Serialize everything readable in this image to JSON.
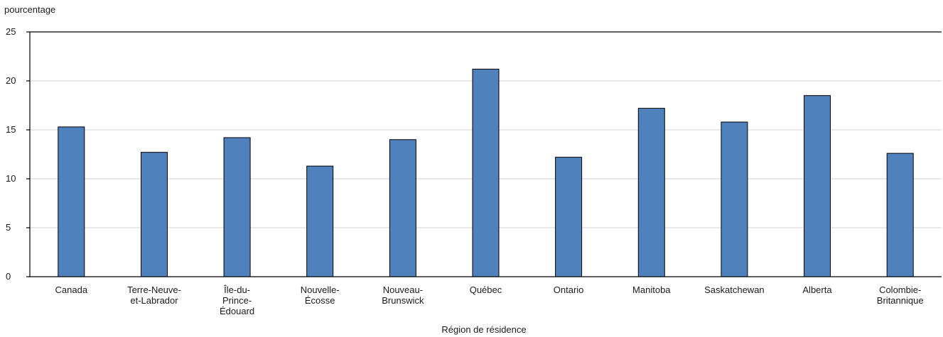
{
  "chart_data": {
    "type": "bar",
    "ylabel": "pourcentage",
    "xlabel": "Région de résidence",
    "title": "",
    "ylim": [
      0,
      25
    ],
    "yticks": [
      0,
      5,
      10,
      15,
      20,
      25
    ],
    "grid": true,
    "bar_color": "#4f81bd",
    "categories": [
      [
        "Canada"
      ],
      [
        "Terre-Neuve-",
        "et-Labrador"
      ],
      [
        "Île-du-",
        "Prince-",
        "Édouard"
      ],
      [
        "Nouvelle-",
        "Écosse"
      ],
      [
        "Nouveau-",
        "Brunswick"
      ],
      [
        "Québec"
      ],
      [
        "Ontario"
      ],
      [
        "Manitoba"
      ],
      [
        "Saskatchewan"
      ],
      [
        "Alberta"
      ],
      [
        "Colombie-",
        "Britannique"
      ]
    ],
    "values": [
      15.3,
      12.7,
      14.2,
      11.3,
      14.0,
      21.2,
      12.2,
      17.2,
      15.8,
      18.5,
      12.6
    ]
  }
}
